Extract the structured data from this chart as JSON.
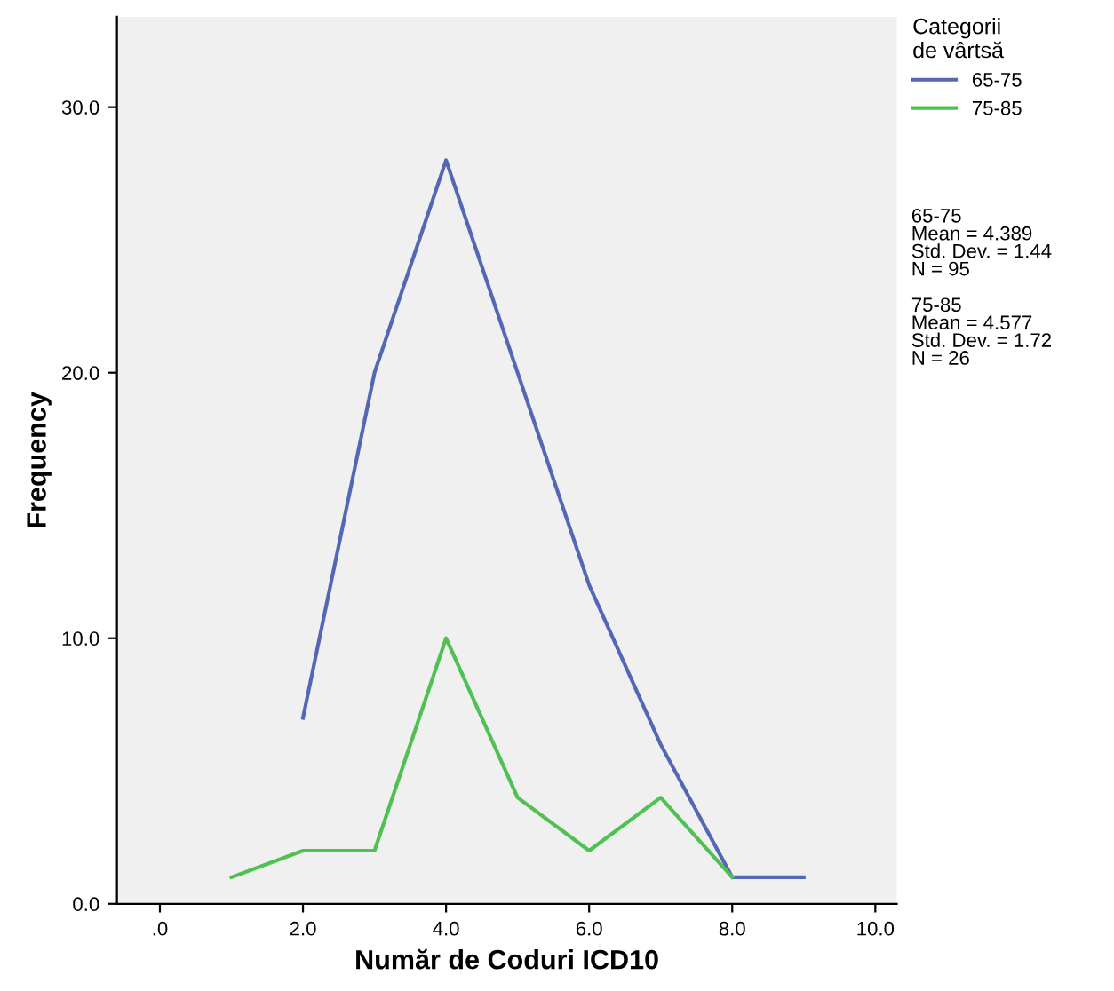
{
  "chart_data": {
    "type": "line",
    "xlabel": "Număr de Coduri ICD10",
    "ylabel": "Frequency",
    "legend_title": "Categorii\nde vârtsă",
    "legend": "right",
    "grid": false,
    "series": [
      {
        "name": "65-75",
        "color": "#5467b5",
        "x": [
          2,
          3,
          4,
          5,
          6,
          7,
          8,
          9
        ],
        "values": [
          7,
          20,
          28,
          20,
          12,
          6,
          1,
          1
        ]
      },
      {
        "name": "75-85",
        "color": "#4fc152",
        "x": [
          1,
          2,
          3,
          4,
          5,
          6,
          7,
          8
        ],
        "values": [
          1,
          2,
          2,
          10,
          4,
          2,
          4,
          1
        ]
      }
    ],
    "xlim": [
      -0.6,
      10.3
    ],
    "ylim": [
      0,
      33.4
    ],
    "xticks": [
      {
        "value": 0,
        "label": ".0"
      },
      {
        "value": 2,
        "label": "2.0"
      },
      {
        "value": 4,
        "label": "4.0"
      },
      {
        "value": 6,
        "label": "6.0"
      },
      {
        "value": 8,
        "label": "8.0"
      },
      {
        "value": 10,
        "label": "10.0"
      }
    ],
    "yticks": [
      {
        "value": 0,
        "label": "0.0"
      },
      {
        "value": 10,
        "label": "10.0"
      },
      {
        "value": 20,
        "label": "20.0"
      },
      {
        "value": 30,
        "label": "30.0"
      }
    ],
    "annotations": [
      "65-75\nMean = 4.389\nStd. Dev. = 1.44\nN = 95",
      "75-85\nMean = 4.577\nStd. Dev. = 1.72\nN = 26"
    ]
  }
}
